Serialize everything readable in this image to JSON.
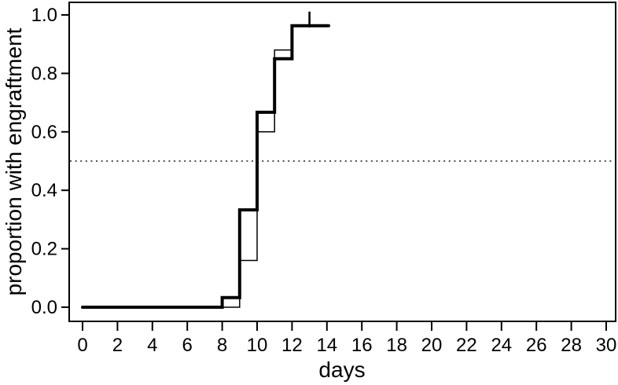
{
  "figure": {
    "background": "#ffffff",
    "axis_color": "#000000"
  },
  "chart_data": {
    "type": "line",
    "subtype": "step-function-survival-curve",
    "title": "",
    "xlabel": "days",
    "ylabel": "proportion with engraftment",
    "xlim": [
      0,
      30
    ],
    "ylim": [
      0.0,
      1.0
    ],
    "grid": false,
    "legend": "none",
    "x_ticks": [
      0,
      2,
      4,
      6,
      8,
      10,
      12,
      14,
      16,
      18,
      20,
      22,
      24,
      26,
      28,
      30
    ],
    "y_tick_labels": [
      "0.0",
      "0.2",
      "0.4",
      "0.6",
      "0.8",
      "1.0"
    ],
    "series": [
      {
        "name": "thin-step-estimate",
        "color": "#000000",
        "line_width": 1.5,
        "step_points": [
          [
            0,
            0.0
          ],
          [
            9,
            0.16
          ],
          [
            10,
            0.6
          ],
          [
            11,
            0.88
          ],
          [
            12,
            0.963
          ]
        ],
        "end_x": 13.9
      },
      {
        "name": "thick-step-estimate",
        "color": "#000000",
        "line_width": 4,
        "step_points": [
          [
            0,
            0.0
          ],
          [
            8,
            0.033
          ],
          [
            9,
            0.333
          ],
          [
            10,
            0.667
          ],
          [
            11,
            0.85
          ],
          [
            12,
            0.963
          ]
        ],
        "end_x": 14.1
      }
    ],
    "censor_marks": [
      {
        "x": 13,
        "y": 0.963,
        "series": "thick-step-estimate"
      }
    ],
    "reference_line": {
      "y": 0.5,
      "style": "dotted",
      "color": "#3a3a3a"
    }
  }
}
